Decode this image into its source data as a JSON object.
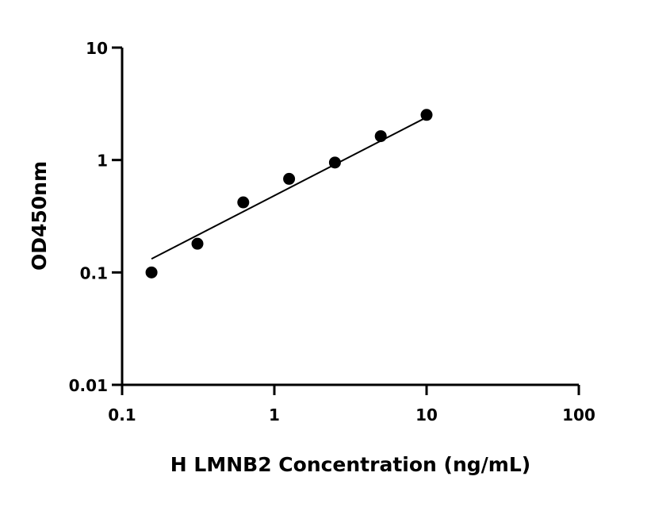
{
  "chart_data": {
    "type": "scatter",
    "title": "",
    "xlabel": "H LMNB2 Concentration (ng/mL)",
    "ylabel": "OD450nm",
    "xscale": "log",
    "yscale": "log",
    "xlim": [
      0.1,
      100
    ],
    "ylim": [
      0.01,
      10
    ],
    "xticks": [
      "0.1",
      "1",
      "10",
      "100"
    ],
    "yticks": [
      "0.01",
      "0.1",
      "1",
      "10"
    ],
    "grid": false,
    "legend": "none",
    "points": {
      "x": [
        0.156,
        0.3125,
        0.625,
        1.25,
        2.5,
        5,
        10
      ],
      "y": [
        0.1,
        0.18,
        0.42,
        0.68,
        0.95,
        1.63,
        2.52
      ]
    },
    "fit_line": {
      "x": [
        0.156,
        10
      ],
      "y": [
        0.132,
        2.4
      ]
    },
    "colors": {
      "points": "#000000",
      "line": "#000000"
    }
  }
}
